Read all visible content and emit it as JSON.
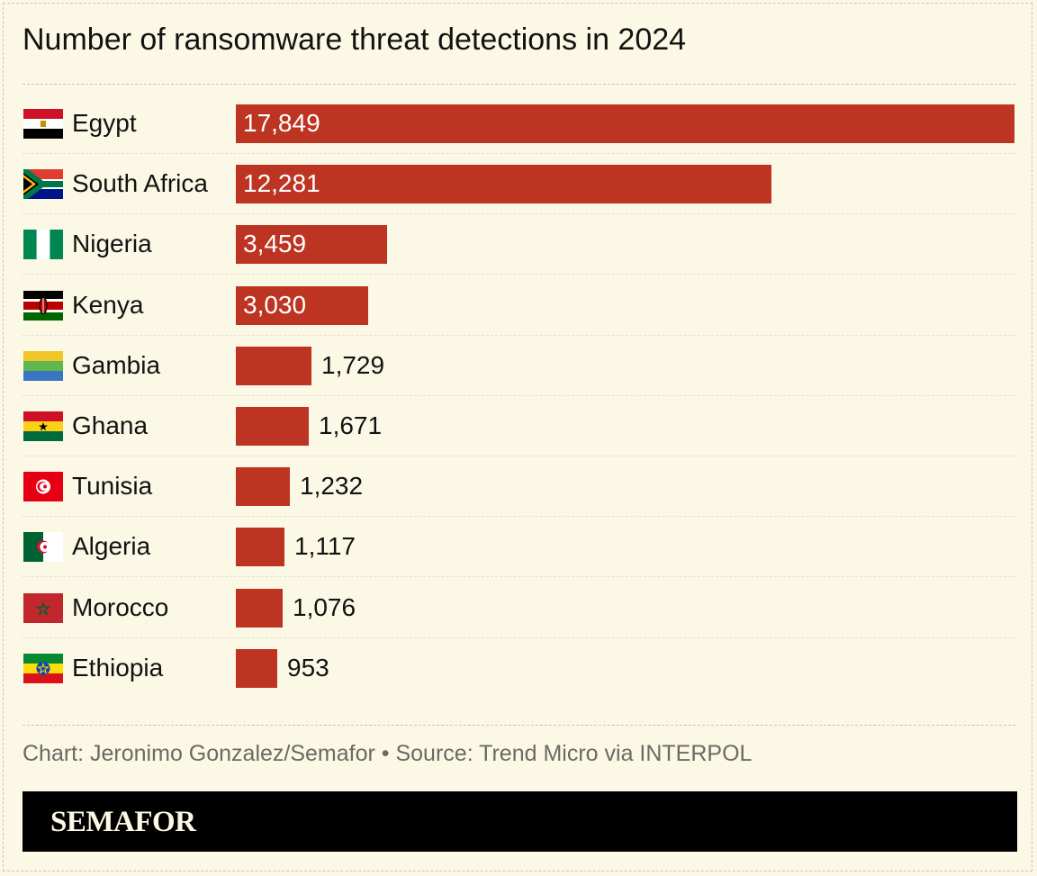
{
  "chart_data": {
    "type": "bar",
    "orientation": "horizontal",
    "title": "Number of ransomware threat detections in 2024",
    "categories": [
      "Egypt",
      "South Africa",
      "Nigeria",
      "Kenya",
      "Gambia",
      "Ghana",
      "Tunisia",
      "Algeria",
      "Morocco",
      "Ethiopia"
    ],
    "values": [
      17849,
      12281,
      3459,
      3030,
      1729,
      1671,
      1232,
      1117,
      1076,
      953
    ],
    "value_labels": [
      "17,849",
      "12,281",
      "3,459",
      "3,030",
      "1,729",
      "1,671",
      "1,232",
      "1,117",
      "1,076",
      "953"
    ],
    "xlim": [
      0,
      17849
    ],
    "grid": false,
    "bar_color": "#be3423",
    "flag_icons": [
      "egypt-flag-icon",
      "south-africa-flag-icon",
      "nigeria-flag-icon",
      "kenya-flag-icon",
      "gambia-flag-icon",
      "ghana-flag-icon",
      "tunisia-flag-icon",
      "algeria-flag-icon",
      "morocco-flag-icon",
      "ethiopia-flag-icon"
    ]
  },
  "footer": {
    "credit": "Chart: Jeronimo Gonzalez/Semafor • Source: Trend Micro via INTERPOL"
  },
  "brand": {
    "name": "SEMAFOR"
  },
  "colors": {
    "background": "#fcf8e6",
    "bar": "#be3423",
    "brand_bar": "#000000"
  }
}
